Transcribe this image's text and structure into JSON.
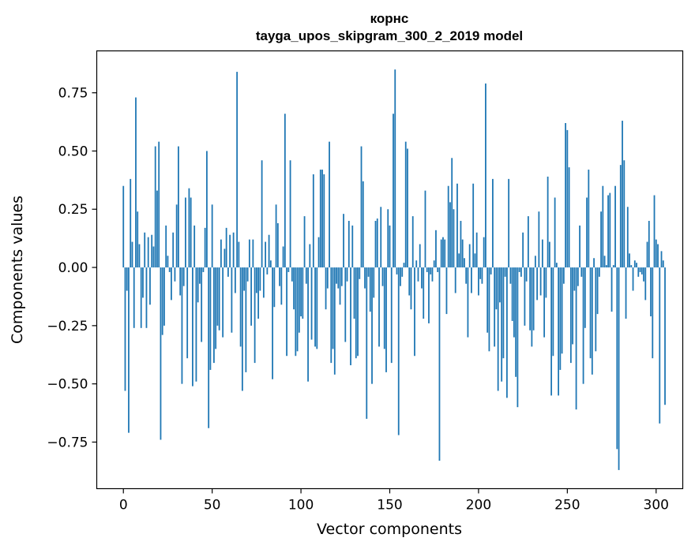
{
  "chart_data": {
    "type": "bar",
    "title": "корнс",
    "subtitle": "tayga_upos_skipgram_300_2_2019 model",
    "xlabel": "Vector components",
    "ylabel": "Components values",
    "xlim": [
      -15,
      315
    ],
    "ylim": [
      -0.95,
      0.93
    ],
    "x_ticks": [
      0,
      50,
      100,
      150,
      200,
      250,
      300
    ],
    "y_ticks": [
      -0.75,
      -0.5,
      -0.25,
      0.0,
      0.25,
      0.5,
      0.75
    ],
    "y_tick_labels": [
      "−0.75",
      "−0.50",
      "−0.25",
      "0.00",
      "0.25",
      "0.50",
      "0.75"
    ],
    "bar_color": "#1f77b4",
    "grid": false,
    "values": [
      0.35,
      -0.53,
      -0.1,
      -0.71,
      0.38,
      0.11,
      -0.26,
      0.73,
      0.24,
      0.1,
      -0.26,
      -0.13,
      0.15,
      -0.26,
      0.13,
      -0.16,
      0.14,
      0.09,
      0.52,
      0.33,
      0.54,
      -0.74,
      -0.29,
      -0.25,
      0.18,
      0.05,
      -0.02,
      -0.14,
      0.15,
      -0.06,
      0.27,
      0.52,
      -0.12,
      -0.5,
      -0.08,
      0.3,
      -0.39,
      0.34,
      0.3,
      -0.51,
      0.18,
      -0.49,
      -0.15,
      -0.07,
      -0.32,
      -0.02,
      0.17,
      0.5,
      -0.69,
      -0.44,
      0.27,
      -0.41,
      -0.35,
      -0.25,
      -0.27,
      0.12,
      -0.3,
      0.08,
      0.17,
      -0.04,
      0.14,
      -0.28,
      0.15,
      -0.11,
      0.84,
      0.11,
      -0.34,
      -0.53,
      -0.1,
      -0.45,
      -0.06,
      0.12,
      -0.25,
      0.12,
      -0.41,
      -0.11,
      -0.22,
      -0.1,
      0.46,
      -0.13,
      0.11,
      -0.03,
      0.14,
      0.03,
      -0.48,
      -0.17,
      0.27,
      0.19,
      -0.08,
      -0.16,
      0.09,
      0.66,
      -0.38,
      -0.02,
      0.46,
      -0.06,
      -0.18,
      -0.38,
      -0.36,
      -0.28,
      -0.21,
      -0.22,
      0.22,
      -0.07,
      -0.49,
      0.1,
      -0.31,
      0.4,
      -0.34,
      -0.35,
      0.13,
      0.42,
      0.42,
      0.4,
      -0.18,
      -0.09,
      0.54,
      -0.41,
      -0.35,
      -0.46,
      -0.07,
      -0.09,
      -0.16,
      -0.08,
      0.23,
      -0.32,
      -0.06,
      0.2,
      -0.42,
      0.18,
      -0.22,
      -0.39,
      -0.38,
      -0.05,
      0.52,
      0.37,
      -0.09,
      -0.65,
      -0.04,
      -0.19,
      -0.5,
      -0.13,
      0.2,
      0.21,
      -0.34,
      0.26,
      -0.08,
      -0.35,
      -0.45,
      0.25,
      0.18,
      -0.41,
      0.66,
      0.85,
      -0.03,
      -0.72,
      -0.08,
      -0.04,
      0.02,
      0.54,
      0.51,
      -0.12,
      -0.18,
      0.22,
      -0.38,
      0.03,
      -0.06,
      0.1,
      -0.09,
      -0.22,
      0.33,
      -0.02,
      -0.24,
      -0.03,
      -0.06,
      0.03,
      0.16,
      -0.02,
      -0.83,
      0.12,
      0.13,
      0.12,
      -0.2,
      0.35,
      0.28,
      0.47,
      0.25,
      -0.11,
      0.36,
      0.06,
      0.2,
      0.12,
      0.04,
      -0.07,
      -0.3,
      0.1,
      -0.11,
      0.36,
      0.06,
      0.15,
      -0.12,
      -0.05,
      -0.07,
      0.13,
      0.79,
      -0.28,
      -0.36,
      -0.03,
      0.38,
      -0.34,
      -0.18,
      -0.53,
      -0.15,
      -0.49,
      -0.39,
      -0.04,
      -0.56,
      0.38,
      -0.07,
      -0.23,
      -0.3,
      -0.47,
      -0.6,
      -0.02,
      -0.04,
      0.15,
      -0.25,
      -0.06,
      0.22,
      -0.27,
      -0.34,
      -0.27,
      0.05,
      -0.14,
      0.24,
      -0.12,
      0.12,
      -0.3,
      -0.13,
      0.39,
      0.11,
      -0.55,
      -0.38,
      0.3,
      0.02,
      -0.55,
      -0.44,
      -0.37,
      -0.07,
      0.62,
      0.59,
      0.43,
      -0.41,
      -0.33,
      -0.1,
      -0.61,
      -0.08,
      0.18,
      -0.04,
      -0.5,
      -0.26,
      0.3,
      0.42,
      -0.39,
      -0.46,
      0.04,
      -0.36,
      -0.2,
      -0.04,
      0.24,
      0.35,
      0.05,
      0.01,
      0.31,
      0.32,
      -0.19,
      0.01,
      0.35,
      -0.78,
      -0.87,
      0.44,
      0.63,
      0.46,
      -0.22,
      0.26,
      0.06,
      0.01,
      -0.1,
      0.03,
      0.02,
      -0.04,
      -0.02,
      -0.03,
      -0.06,
      -0.14,
      0.11,
      0.2,
      -0.21,
      -0.39,
      0.31,
      0.12,
      0.1,
      -0.67,
      0.07,
      0.03,
      -0.59
    ]
  }
}
